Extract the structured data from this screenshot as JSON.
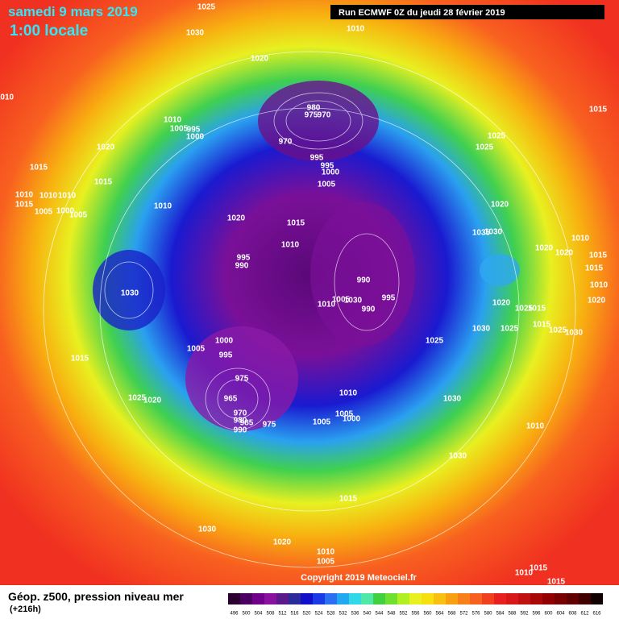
{
  "header": {
    "date": "samedi 9 mars 2019",
    "time": "1:00 locale",
    "run": "Run ECMWF 0Z du jeudi 28 février 2019"
  },
  "footer": {
    "title": "Géop. z500, pression niveau mer",
    "lead": "(+216h)",
    "copyright": "Copyright 2019 Meteociel.fr"
  },
  "legend": {
    "values": [
      496,
      500,
      504,
      508,
      512,
      516,
      520,
      524,
      528,
      532,
      536,
      540,
      544,
      548,
      552,
      556,
      560,
      564,
      568,
      572,
      576,
      580,
      584,
      588,
      592,
      596,
      600,
      604,
      608,
      612,
      616
    ],
    "colors": [
      "#2a0030",
      "#4a0060",
      "#70008a",
      "#8a10a0",
      "#5a1a8a",
      "#2a2a9a",
      "#1010c8",
      "#1a3ae8",
      "#2a70f0",
      "#20a8f0",
      "#30d8e8",
      "#50e8a8",
      "#40d040",
      "#70e030",
      "#b0f020",
      "#e8f020",
      "#f8e010",
      "#f8c010",
      "#f8a010",
      "#f88018",
      "#f86020",
      "#f04020",
      "#e82020",
      "#d81818",
      "#c01010",
      "#a80808",
      "#900000",
      "#780000",
      "#600000",
      "#400000",
      "#100000"
    ]
  },
  "isobars": [
    1025,
    1030,
    1010,
    1020,
    1010,
    1015,
    980,
    975,
    970,
    1010,
    1005,
    995,
    1000,
    970,
    1025,
    1020,
    1025,
    995,
    995,
    1000,
    1015,
    1015,
    1005,
    1010,
    1010,
    1010,
    1015,
    1010,
    1020,
    1005,
    1000,
    1005,
    1020,
    1015,
    1035,
    1030,
    1010,
    1010,
    1020,
    1020,
    1015,
    995,
    990,
    1015,
    990,
    1030,
    1010,
    995,
    1005,
    1010,
    1030,
    990,
    1020,
    1025,
    1015,
    1020,
    1030,
    1025,
    1015,
    1025,
    1030,
    1025,
    1000,
    1005,
    995,
    1015,
    975,
    1010,
    965,
    1025,
    1020,
    1030,
    970,
    1005,
    1000,
    980,
    975,
    985,
    990,
    1005,
    1010,
    1030,
    1015,
    1030,
    1020,
    1010,
    1005,
    1015,
    1010,
    1015
  ]
}
